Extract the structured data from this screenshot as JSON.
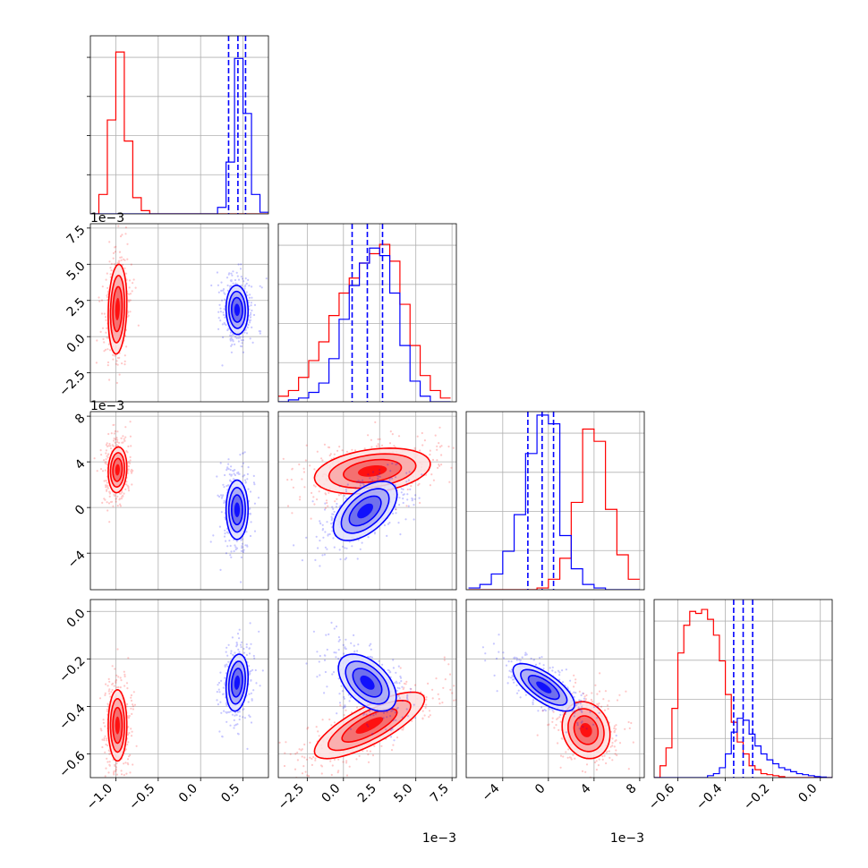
{
  "chart_data": {
    "type": "corner",
    "grid": true,
    "series": [
      {
        "color": "#ff0000"
      },
      {
        "color": "#0000ff"
      }
    ],
    "params": [
      {
        "range": [
          -1.3,
          0.8
        ],
        "ticks": [
          -1.0,
          -0.5,
          0.0,
          0.5
        ],
        "tick_labels": [
          "−1.0",
          "−0.5",
          "0.0",
          "0.5"
        ],
        "offset_label": ""
      },
      {
        "range": [
          -4.5,
          7.8
        ],
        "ticks": [
          -2.5,
          0.0,
          2.5,
          5.0,
          7.5
        ],
        "tick_labels": [
          "−2.5",
          "0.0",
          "2.5",
          "5.0",
          "7.5"
        ],
        "offset_label": "1e−3"
      },
      {
        "range": [
          -7.2,
          8.4
        ],
        "ticks": [
          -4,
          0,
          4,
          8
        ],
        "tick_labels": [
          "−4",
          "0",
          "4",
          "8"
        ],
        "offset_label": "1e−3"
      },
      {
        "range": [
          -0.7,
          0.05
        ],
        "ticks": [
          -0.6,
          -0.4,
          -0.2,
          0.0
        ],
        "tick_labels": [
          "−0.6",
          "−0.4",
          "−0.2",
          "0.0"
        ],
        "offset_label": ""
      }
    ],
    "marginals": [
      {
        "bin_edges": [
          -1.3,
          -1.2,
          -1.1,
          -1.0,
          -0.9,
          -0.8,
          -0.7,
          -0.6,
          -0.5,
          -0.4,
          -0.3,
          -0.2,
          -0.1,
          0.0,
          0.1,
          0.2,
          0.3,
          0.4,
          0.5,
          0.6,
          0.7,
          0.8
        ],
        "counts": [
          [
            0,
            0.12,
            0.58,
            1.0,
            0.45,
            0.1,
            0.02,
            0,
            0,
            0,
            0,
            0,
            0,
            0,
            0,
            0,
            0,
            0,
            0,
            0,
            0
          ],
          [
            0,
            0,
            0,
            0,
            0,
            0,
            0,
            0,
            0,
            0,
            0,
            0,
            0,
            0,
            0,
            0.04,
            0.32,
            0.96,
            0.62,
            0.12,
            0.01
          ]
        ],
        "ymax": 1.1,
        "quantiles": [
          0.33,
          0.44,
          0.53
        ]
      },
      {
        "bin_edges": [
          -4.5,
          -3.8,
          -3.1,
          -2.4,
          -1.7,
          -1.0,
          -0.3,
          0.4,
          1.1,
          1.8,
          2.5,
          3.2,
          3.9,
          4.6,
          5.3,
          6.0,
          6.7,
          7.4
        ],
        "counts": [
          [
            0.03,
            0.06,
            0.13,
            0.22,
            0.32,
            0.46,
            0.58,
            0.66,
            0.74,
            0.79,
            0.84,
            0.75,
            0.52,
            0.3,
            0.14,
            0.06,
            0.02
          ],
          [
            0,
            0.01,
            0.02,
            0.05,
            0.1,
            0.23,
            0.44,
            0.62,
            0.74,
            0.82,
            0.78,
            0.58,
            0.3,
            0.11,
            0.03,
            0,
            0
          ]
        ],
        "ymax": 0.95,
        "quantiles": [
          0.6,
          1.65,
          2.7
        ]
      },
      {
        "bin_edges": [
          -7.0,
          -6.0,
          -5.0,
          -4.0,
          -3.0,
          -2.0,
          -1.0,
          0.0,
          1.0,
          2.0,
          3.0,
          4.0,
          5.0,
          6.0,
          7.0,
          8.0
        ],
        "counts": [
          [
            0,
            0,
            0,
            0,
            0,
            0,
            0.01,
            0.06,
            0.18,
            0.5,
            0.92,
            0.85,
            0.46,
            0.2,
            0.06
          ],
          [
            0.01,
            0.03,
            0.09,
            0.22,
            0.43,
            0.78,
            1.0,
            0.95,
            0.31,
            0.12,
            0.03,
            0.01,
            0,
            0,
            0
          ]
        ],
        "ymax": 1.02,
        "quantiles": [
          -1.8,
          -0.55,
          0.45
        ]
      },
      {
        "bin_edges": [
          -0.7,
          -0.675,
          -0.65,
          -0.625,
          -0.6,
          -0.575,
          -0.55,
          -0.525,
          -0.5,
          -0.475,
          -0.45,
          -0.425,
          -0.4,
          -0.375,
          -0.35,
          -0.325,
          -0.3,
          -0.275,
          -0.25,
          -0.225,
          -0.2,
          -0.175,
          -0.15,
          -0.125,
          -0.1,
          -0.075,
          -0.05,
          -0.025,
          0.0,
          0.025,
          0.05
        ],
        "counts": [
          [
            0,
            0.06,
            0.15,
            0.35,
            0.63,
            0.77,
            0.84,
            0.83,
            0.85,
            0.8,
            0.72,
            0.59,
            0.42,
            0.28,
            0.18,
            0.12,
            0.06,
            0.04,
            0.02,
            0.015,
            0.01,
            0.005,
            0,
            0,
            0,
            0,
            0,
            0,
            0,
            0
          ],
          [
            0,
            0,
            0,
            0,
            0,
            0,
            0,
            0,
            0,
            0.01,
            0.02,
            0.05,
            0.12,
            0.23,
            0.3,
            0.29,
            0.22,
            0.16,
            0.12,
            0.09,
            0.07,
            0.05,
            0.04,
            0.03,
            0.02,
            0.015,
            0.01,
            0.005,
            0.003,
            0
          ]
        ],
        "ymax": 0.9,
        "quantiles": [
          -0.365,
          -0.325,
          -0.285
        ]
      }
    ],
    "pairs": [
      {
        "row": 1,
        "col": 0,
        "points": [
          {
            "mean": [
              -0.98,
              1.9
            ],
            "sd": [
              0.055,
              1.55
            ],
            "rho": 0.15
          },
          {
            "mean": [
              0.43,
              1.85
            ],
            "sd": [
              0.065,
              0.85
            ],
            "rho": -0.05
          }
        ]
      },
      {
        "row": 2,
        "col": 0,
        "points": [
          {
            "mean": [
              -0.98,
              3.3
            ],
            "sd": [
              0.055,
              1.0
            ],
            "rho": 0.1
          },
          {
            "mean": [
              0.43,
              -0.2
            ],
            "sd": [
              0.065,
              1.3
            ],
            "rho": 0.0
          }
        ]
      },
      {
        "row": 2,
        "col": 1,
        "points": [
          {
            "mean": [
              2.0,
              3.2
            ],
            "sd": [
              2.0,
              1.0
            ],
            "rho": 0.3
          },
          {
            "mean": [
              1.5,
              -0.3
            ],
            "sd": [
              1.1,
              1.3
            ],
            "rho": 0.55
          }
        ]
      },
      {
        "row": 3,
        "col": 0,
        "points": [
          {
            "mean": [
              -0.98,
              -0.48
            ],
            "sd": [
              0.055,
              0.075
            ],
            "rho": 0.0
          },
          {
            "mean": [
              0.43,
              -0.3
            ],
            "sd": [
              0.065,
              0.06
            ],
            "rho": 0.2
          }
        ]
      },
      {
        "row": 3,
        "col": 1,
        "points": [
          {
            "mean": [
              1.8,
              -0.48
            ],
            "sd": [
              1.9,
              0.07
            ],
            "rho": 0.78
          },
          {
            "mean": [
              1.65,
              -0.3
            ],
            "sd": [
              1.0,
              0.06
            ],
            "rho": -0.5
          }
        ]
      },
      {
        "row": 3,
        "col": 2,
        "points": [
          {
            "mean": [
              3.3,
              -0.5
            ],
            "sd": [
              1.05,
              0.06
            ],
            "rho": -0.15
          },
          {
            "mean": [
              -0.4,
              -0.32
            ],
            "sd": [
              1.35,
              0.05
            ],
            "rho": -0.72
          }
        ]
      }
    ]
  }
}
